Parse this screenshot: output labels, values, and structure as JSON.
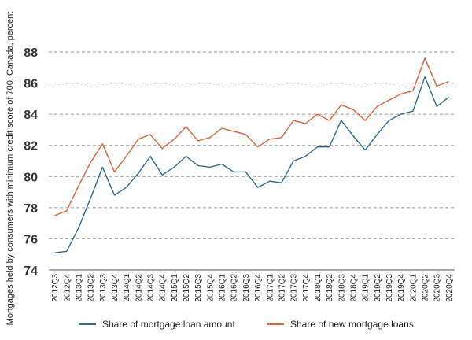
{
  "chart_data": {
    "type": "line",
    "title": "",
    "xlabel": "",
    "ylabel": "Mortgages held by consumers with minimum credit score of 700, Canada, percent",
    "ylim": [
      74,
      88
    ],
    "yticks": [
      74,
      76,
      78,
      80,
      82,
      84,
      86,
      88
    ],
    "grid": "horizontal dashed",
    "legend_position": "bottom",
    "categories": [
      "2012Q3",
      "2012Q4",
      "2013Q1",
      "2013Q2",
      "2013Q3",
      "2013Q4",
      "2014Q1",
      "2014Q2",
      "2014Q3",
      "2014Q4",
      "2015Q1",
      "2015Q2",
      "2015Q3",
      "2015Q4",
      "2016Q1",
      "2016Q2",
      "2016Q3",
      "2016Q4",
      "2017Q1",
      "2017Q2",
      "2017Q3",
      "2017Q4",
      "2018Q1",
      "2018Q2",
      "2018Q3",
      "2018Q4",
      "2019Q1",
      "2019Q2",
      "2019Q3",
      "2019Q4",
      "2020Q1",
      "2020Q2",
      "2020Q3",
      "2020Q4"
    ],
    "series": [
      {
        "name": "Share of mortgage loan amount",
        "color": "#2e6a8e",
        "values": [
          75.1,
          75.2,
          76.7,
          78.6,
          80.6,
          78.8,
          79.3,
          80.2,
          81.3,
          80.1,
          80.6,
          81.3,
          80.7,
          80.6,
          80.8,
          80.3,
          80.3,
          79.3,
          79.7,
          79.6,
          81.0,
          81.3,
          81.9,
          81.9,
          83.6,
          82.6,
          81.7,
          82.7,
          83.6,
          84.0,
          84.2,
          86.4,
          84.5,
          85.1
        ]
      },
      {
        "name": "Share of new mortgage loans",
        "color": "#e0603a",
        "values": [
          77.5,
          77.8,
          79.4,
          80.9,
          82.1,
          80.3,
          81.3,
          82.4,
          82.7,
          81.8,
          82.4,
          83.2,
          82.3,
          82.5,
          83.1,
          82.9,
          82.7,
          81.9,
          82.4,
          82.5,
          83.6,
          83.4,
          84.0,
          83.6,
          84.6,
          84.3,
          83.6,
          84.5,
          84.9,
          85.3,
          85.5,
          87.6,
          85.8,
          86.1
        ]
      }
    ]
  }
}
